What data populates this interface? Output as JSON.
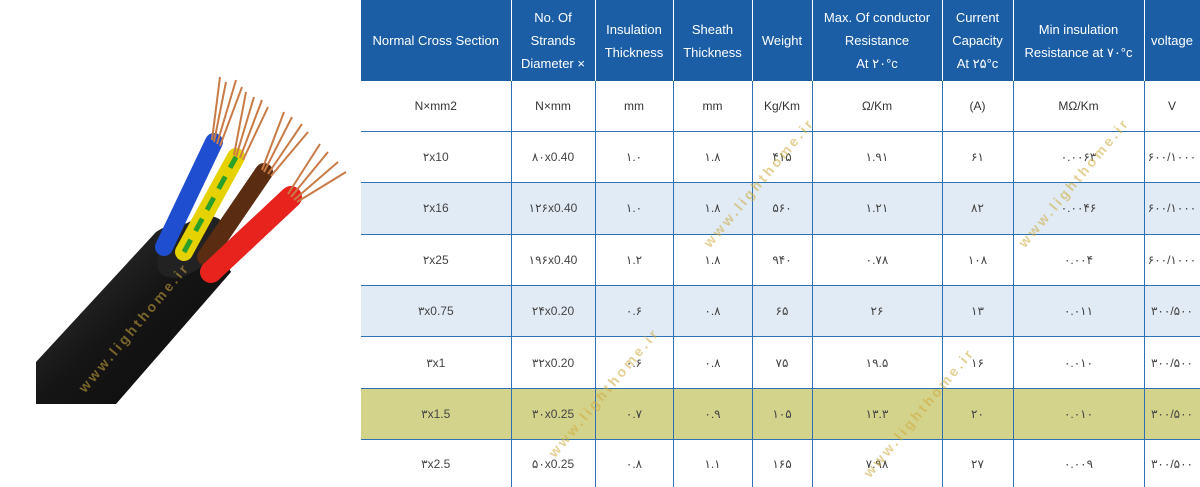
{
  "watermark": "www.lighthome.ir",
  "columns": [
    "Normal Cross Section",
    "No. Of\nStrands\nDiameter ×",
    "Insulation\nThickness",
    "Sheath\nThickness",
    "Weight",
    "Max. Of conductor\nResistance\nAt ۲۰°c",
    "Current\nCapacity\nAt ۲۵°c",
    "Min insulation\nResistance at ۷۰°c",
    "voltage"
  ],
  "units": [
    "N×mm2",
    "N×mm",
    "mm",
    "mm",
    "Kg/Km",
    "Ω/Km",
    "(A)",
    "MΩ/Km",
    "V"
  ],
  "rows": [
    [
      "۲x10",
      "۸۰x0.40",
      "۱.۰",
      "۱.۸",
      "۴۱۵",
      "۱.۹۱",
      "۶۱",
      "۰.۰۰۶۳",
      "۶۰۰/۱۰۰۰"
    ],
    [
      "۲x16",
      "۱۲۶x0.40",
      "۱.۰",
      "۱.۸",
      "۵۶۰",
      "۱.۲۱",
      "۸۲",
      "۰.۰۰۴۶",
      "۶۰۰/۱۰۰۰"
    ],
    [
      "۲x25",
      "۱۹۶x0.40",
      "۱.۲",
      "۱.۸",
      "۹۴۰",
      "۰.۷۸",
      "۱۰۸",
      "۰.۰۰۴",
      "۶۰۰/۱۰۰۰"
    ],
    [
      "۳x0.75",
      "۲۴x0.20",
      "۰.۶",
      "۰.۸",
      "۶۵",
      "۲۶",
      "۱۳",
      "۰.۰۱۱",
      "۳۰۰/۵۰۰"
    ],
    [
      "۳x1",
      "۳۲x0.20",
      "۰.۶",
      "۰.۸",
      "۷۵",
      "۱۹.۵",
      "۱۶",
      "۰.۰۱۰",
      "۳۰۰/۵۰۰"
    ],
    [
      "۳x1.5",
      "۳۰x0.25",
      "۰.۷",
      "۰.۹",
      "۱۰۵",
      "۱۳.۳",
      "۲۰",
      "۰.۰۱۰",
      "۳۰۰/۵۰۰"
    ],
    [
      "۳x2.5",
      "۵۰x0.25",
      "۰.۸",
      "۱.۱",
      "۱۶۵",
      "۷.۹۸",
      "۲۷",
      "۰.۰۰۹",
      "۳۰۰/۵۰۰"
    ]
  ],
  "highlighted_row": 5,
  "colors": {
    "header": "#1b5ea6",
    "alt_row": "#e1ebf6",
    "highlight_row": "#d4d38c"
  }
}
